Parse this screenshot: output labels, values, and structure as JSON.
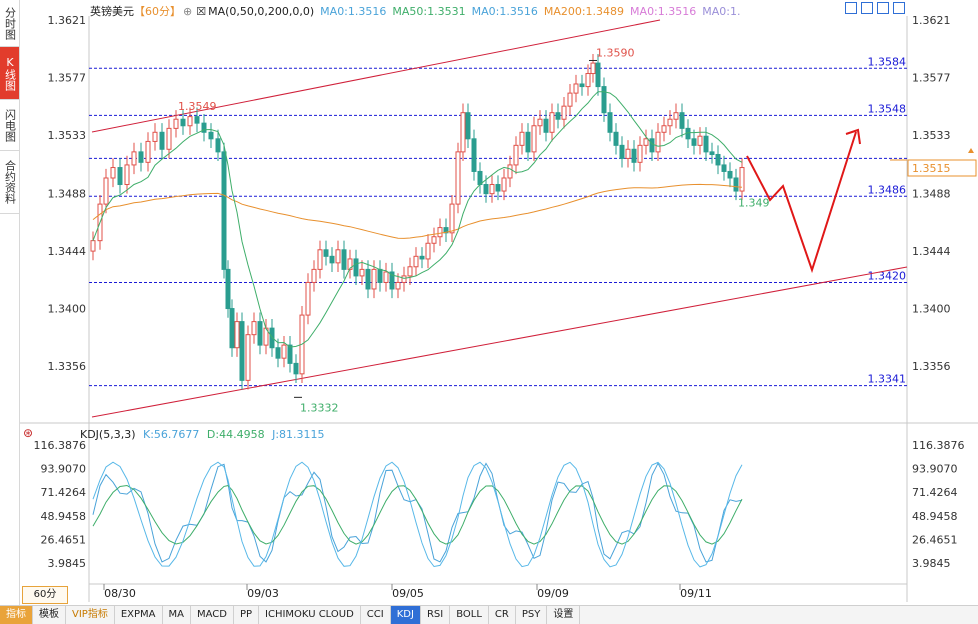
{
  "sidebar": {
    "tabs": [
      {
        "label": "分时图",
        "active": false
      },
      {
        "label": "K线图",
        "active": true
      },
      {
        "label": "闪电图",
        "active": false
      },
      {
        "label": "合约资料",
        "active": false
      }
    ]
  },
  "header": {
    "symbol": "英镑美元",
    "period": "【60分】",
    "ma_label": "MA(0,50,0,200,0,0)",
    "ma_items": [
      {
        "text": "MA0:1.3516",
        "color": "#4aa3d9"
      },
      {
        "text": "MA50:1.3531",
        "color": "#3fae6a"
      },
      {
        "text": "MA0:1.3516",
        "color": "#4aa3d9"
      },
      {
        "text": "MA200:1.3489",
        "color": "#e8902e"
      },
      {
        "text": "MA0:1.3516",
        "color": "#d77bd7"
      },
      {
        "text": "MA0:1.",
        "color": "#9a8fd8"
      }
    ]
  },
  "price_axis": {
    "ticks": [
      "1.3621",
      "1.3577",
      "1.3533",
      "1.3488",
      "1.3444",
      "1.3400",
      "1.3356"
    ],
    "current_price": "1.3515"
  },
  "levels": [
    "1.3584",
    "1.3548",
    "1.3486",
    "1.3420",
    "1.3341"
  ],
  "annotations": {
    "high_left": "1.3549",
    "high_main": "1.3590",
    "low_main": "1.3332",
    "last_low": "1.349"
  },
  "dates": [
    "08/30",
    "09/03",
    "09/05",
    "09/09",
    "09/11"
  ],
  "kdj": {
    "label": "KDJ(5,3,3)",
    "k": "K:56.7677",
    "d": "D:44.4958",
    "j": "J:81.3115",
    "ticks": [
      "116.3876",
      "93.9070",
      "71.4264",
      "48.9458",
      "26.4651",
      "3.9845"
    ]
  },
  "period_selector": "60分",
  "bottom_tabs": [
    "指标",
    "模板",
    "VIP指标",
    "EXPMA",
    "MA",
    "MACD",
    "PP",
    "ICHIMOKU CLOUD",
    "CCI",
    "KDJ",
    "RSI",
    "BOLL",
    "CR",
    "PSY",
    "设置"
  ],
  "active_bottom_tab": "KDJ",
  "colors": {
    "up": "#e0524a",
    "down": "#2a9d8f",
    "level": "#1a1ad6",
    "trend": "#d0203a",
    "ma50": "#3fae6a",
    "ma200": "#e8902e",
    "arrow": "#e01818"
  }
}
